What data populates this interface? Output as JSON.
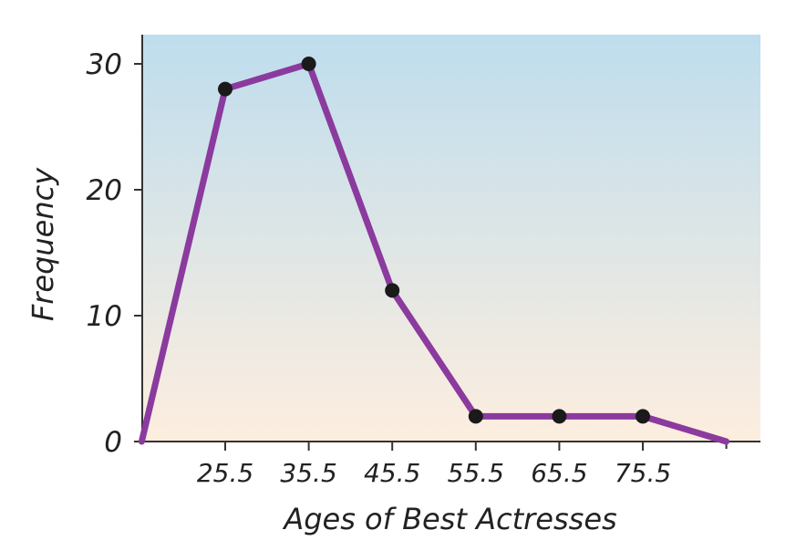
{
  "chart_data": {
    "type": "line",
    "title": "",
    "xlabel": "Ages of Best Actresses",
    "ylabel": "Frequency",
    "x": [
      15.5,
      25.5,
      35.5,
      45.5,
      55.5,
      65.5,
      75.5,
      85.5
    ],
    "series": [
      {
        "values": [
          0,
          28,
          30,
          12,
          2,
          2,
          2,
          0
        ]
      }
    ],
    "marked_points": [
      false,
      true,
      true,
      true,
      true,
      true,
      true,
      false
    ],
    "xticks": [
      25.5,
      35.5,
      45.5,
      55.5,
      65.5,
      75.5
    ],
    "xtick_labels": [
      "25.5",
      "35.5",
      "45.5",
      "55.5",
      "65.5",
      "75.5"
    ],
    "yticks": [
      0,
      10,
      20,
      30
    ],
    "ytick_labels": [
      "0",
      "10",
      "20",
      "30"
    ],
    "xlim": [
      15.5,
      85.5
    ],
    "ylim": [
      0,
      30
    ],
    "grid": false,
    "colors": {
      "line": "#8B3A9E",
      "point": "#1a1a1a",
      "background_top": "#BEDDED",
      "background_bottom": "#FDEEDF",
      "axis": "#333333"
    }
  }
}
